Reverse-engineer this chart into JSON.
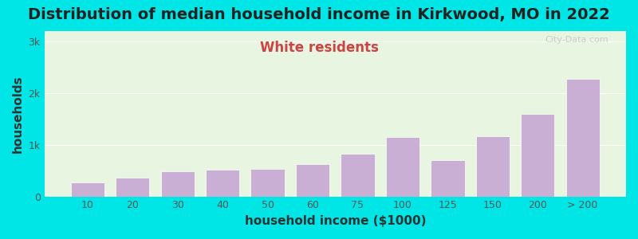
{
  "title": "Distribution of median household income in Kirkwood, MO in 2022",
  "subtitle": "White residents",
  "xlabel": "household income ($1000)",
  "ylabel": "households",
  "categories": [
    "10",
    "20",
    "30",
    "40",
    "50",
    "60",
    "75",
    "100",
    "125",
    "150",
    "200",
    "> 200"
  ],
  "values": [
    270,
    370,
    490,
    510,
    540,
    620,
    830,
    1150,
    700,
    1170,
    1600,
    2280
  ],
  "bar_color": "#c9afd4",
  "bar_edge_color": "#ffffff",
  "background_outer": "#00e5e5",
  "background_inner_top": "#e8f5e0",
  "background_inner_bottom": "#d4eecc",
  "yticks": [
    0,
    1000,
    2000,
    3000
  ],
  "ytick_labels": [
    "0",
    "1k",
    "2k",
    "3k"
  ],
  "ylim": [
    0,
    3200
  ],
  "title_fontsize": 14,
  "subtitle_fontsize": 12,
  "subtitle_color": "#cc4444",
  "axis_label_fontsize": 11,
  "tick_fontsize": 9,
  "watermark": "City-Data.com"
}
